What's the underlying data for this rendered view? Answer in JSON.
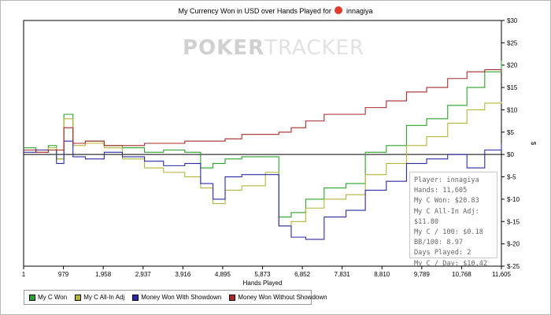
{
  "chart_data": {
    "type": "line",
    "title_prefix": "My Currency Won in USD over Hands Played for",
    "player_name": "innagiya",
    "xlabel": "Hands Played",
    "ylabel": "$",
    "xlim": [
      1,
      11605
    ],
    "ylim": [
      -25,
      30
    ],
    "x_ticks": [
      "1",
      "979",
      "1,958",
      "2,937",
      "3,916",
      "4,895",
      "5,873",
      "6,852",
      "7,831",
      "8,810",
      "9,789",
      "10,768",
      "11,605"
    ],
    "y_ticks": [
      "$30",
      "$25",
      "$20",
      "$15",
      "$10",
      "$5",
      "$0",
      "$-5",
      "$-10",
      "$-15",
      "$-20",
      "$-25"
    ],
    "grid": false,
    "legend_position": "bottom-left",
    "x": [
      1,
      300,
      600,
      800,
      979,
      1200,
      1500,
      1958,
      2400,
      2937,
      3400,
      3916,
      4300,
      4600,
      4895,
      5300,
      5873,
      6200,
      6500,
      6852,
      7300,
      7831,
      8300,
      8810,
      9300,
      9789,
      10300,
      10768,
      11200,
      11605
    ],
    "series": [
      {
        "name": "My C Won",
        "color": "#2aa22a",
        "values": [
          1.5,
          1.0,
          2.0,
          -1.0,
          9.0,
          2.5,
          3.0,
          2.0,
          1.5,
          0.5,
          1.0,
          0.5,
          -3.0,
          -2.0,
          -1.0,
          -0.5,
          -0.5,
          -14.0,
          -13.0,
          -10.0,
          -7.5,
          -6.5,
          0.5,
          2.0,
          6.5,
          8.0,
          11.0,
          15.0,
          18.5,
          21.0
        ]
      },
      {
        "name": "My C All-In Adj",
        "color": "#b4b43a",
        "values": [
          1.0,
          0.5,
          1.5,
          -1.0,
          8.0,
          2.0,
          2.5,
          1.5,
          -1.0,
          -3.0,
          -4.0,
          -5.0,
          -7.5,
          -11.0,
          -8.0,
          -7.0,
          -4.0,
          -16.0,
          -15.0,
          -12.0,
          -10.0,
          -9.0,
          -4.5,
          -2.0,
          2.0,
          4.0,
          7.0,
          10.0,
          11.5,
          11.8
        ]
      },
      {
        "name": "Money Won With Showdown",
        "color": "#2a2aa8",
        "values": [
          0.5,
          1.0,
          1.0,
          -2.0,
          3.0,
          -0.5,
          -1.0,
          0.5,
          -0.5,
          -1.5,
          -2.5,
          -2.0,
          -6.5,
          -10.0,
          -5.0,
          -4.5,
          -4.5,
          -16.0,
          -18.5,
          -19.0,
          -14.0,
          -12.5,
          -8.0,
          -6.0,
          -2.0,
          -1.0,
          0.0,
          -3.0,
          1.0,
          2.5
        ]
      },
      {
        "name": "Money Won Without Showdown",
        "color": "#a82a2a",
        "values": [
          1.0,
          0.5,
          1.0,
          1.0,
          6.0,
          2.5,
          3.0,
          2.0,
          2.0,
          2.5,
          2.5,
          3.0,
          3.0,
          3.0,
          3.5,
          4.5,
          4.5,
          5.0,
          6.0,
          7.5,
          9.0,
          9.0,
          10.5,
          12.0,
          14.0,
          15.0,
          17.0,
          18.5,
          19.0,
          18.5
        ]
      }
    ]
  },
  "watermark": {
    "part1": "POKER",
    "part2": "TRACKER"
  },
  "stats": [
    "Player: innagiya",
    "Hands: 11,605",
    "My C Won: $20.83",
    "My C All-In Adj: $11.80",
    "My C / 100: $0.18",
    "BB/100: 8.97",
    "Days Played: 2",
    "My C / Day: $10.42"
  ]
}
